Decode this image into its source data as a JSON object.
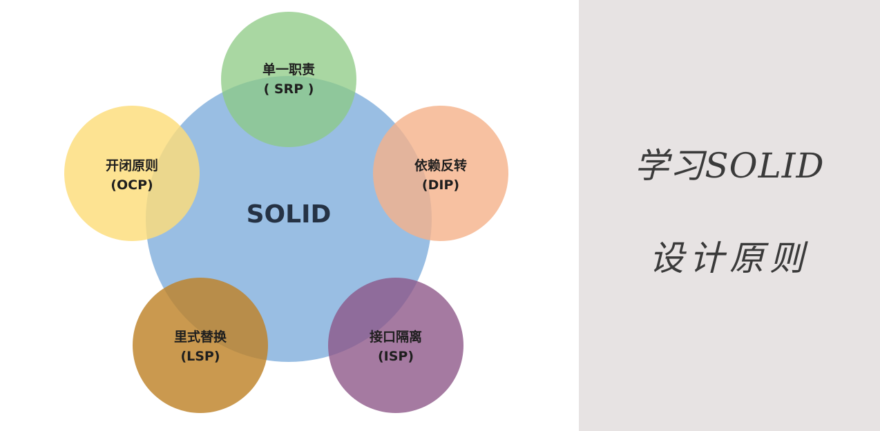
{
  "title": {
    "line1": "学习SOLID",
    "line2": "设计原则"
  },
  "center": {
    "label": "SOLID"
  },
  "principles": [
    {
      "name": "单一职责",
      "abbr": "( SRP )",
      "color": "#8cc983"
    },
    {
      "name": "开闭原则",
      "abbr": "(OCP)",
      "color": "#fddd7a"
    },
    {
      "name": "依赖反转",
      "abbr": "(DIP)",
      "color": "#f5b189"
    },
    {
      "name": "里式替换",
      "abbr": "(LSP)",
      "color": "#be8228"
    },
    {
      "name": "接口隔离",
      "abbr": "(ISP)",
      "color": "#8c5587"
    }
  ],
  "colors": {
    "center_circle": "#93bae1",
    "right_panel_bg": "#e7e3e3"
  }
}
